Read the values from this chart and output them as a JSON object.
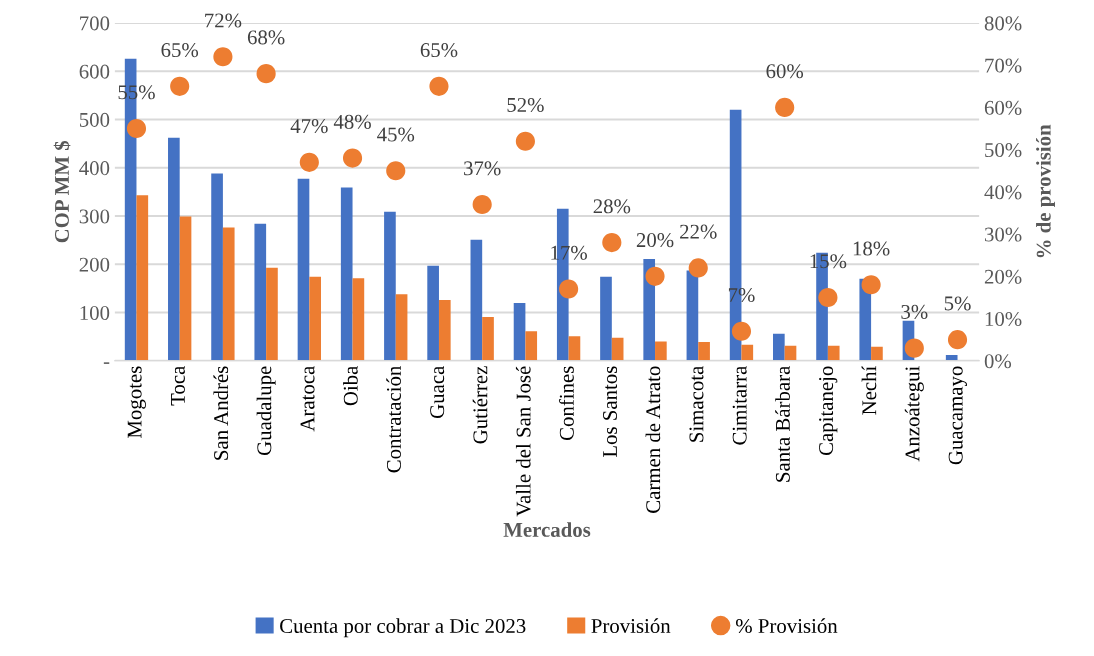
{
  "chart_data": {
    "type": "bar",
    "xlabel": "Mercados",
    "ylabel": "COP MM $",
    "y2label": "% de provisión",
    "categories": [
      "Mogotes",
      "Toca",
      "San Andrés",
      "Guadalupe",
      "Aratoca",
      "Oiba",
      "Contratación",
      "Guaca",
      "Gutiérrez",
      "Valle del San José",
      "Confines",
      "Los Santos",
      "Carmen de Atrato",
      "Simacota",
      "Cimitarra",
      "Santa Bárbara",
      "Capitanejo",
      "Nechí",
      "Anzoátegui",
      "Guacamayo"
    ],
    "series": [
      {
        "name": "Cuenta por cobrar a Dic 2023",
        "type": "bar",
        "color": "#4472c4",
        "values": [
          626,
          462,
          388,
          284,
          377,
          359,
          309,
          197,
          251,
          120,
          315,
          174,
          211,
          187,
          520,
          56,
          224,
          170,
          83,
          12
        ]
      },
      {
        "name": "Provisión",
        "type": "bar",
        "color": "#ed7d31",
        "values": [
          343,
          299,
          276,
          193,
          174,
          171,
          138,
          126,
          91,
          61,
          51,
          48,
          40,
          39,
          33,
          31,
          31,
          29,
          null,
          0
        ]
      },
      {
        "name": "% Provisión",
        "type": "scatter",
        "axis": "y2",
        "color": "#ed7d31",
        "marker": "circle",
        "values": [
          55,
          65,
          72,
          68,
          47,
          48,
          45,
          65,
          37,
          52,
          17,
          28,
          20,
          22,
          7,
          60,
          15,
          18,
          3,
          5
        ],
        "value_labels": [
          "55%",
          "65%",
          "72%",
          "68%",
          "47%",
          "48%",
          "45%",
          "65%",
          "37%",
          "52%",
          "17%",
          "28%",
          "20%",
          "22%",
          "7%",
          "60%",
          "15%",
          "18%",
          "3%",
          "5%"
        ]
      }
    ],
    "ylim": [
      0,
      700
    ],
    "yticks": [
      {
        "value": 0,
        "label": "-"
      },
      100,
      200,
      300,
      400,
      500,
      600,
      700
    ],
    "y2lim": [
      0,
      80
    ],
    "y2ticks": [
      {
        "value": 0,
        "label": "0%"
      },
      {
        "value": 10,
        "label": "10%"
      },
      {
        "value": 20,
        "label": "20%"
      },
      {
        "value": 30,
        "label": "30%"
      },
      {
        "value": 40,
        "label": "40%"
      },
      {
        "value": 50,
        "label": "50%"
      },
      {
        "value": 60,
        "label": "60%"
      },
      {
        "value": 70,
        "label": "70%"
      },
      {
        "value": 80,
        "label": "80%"
      }
    ],
    "grid": "y",
    "legend": "bottom"
  }
}
